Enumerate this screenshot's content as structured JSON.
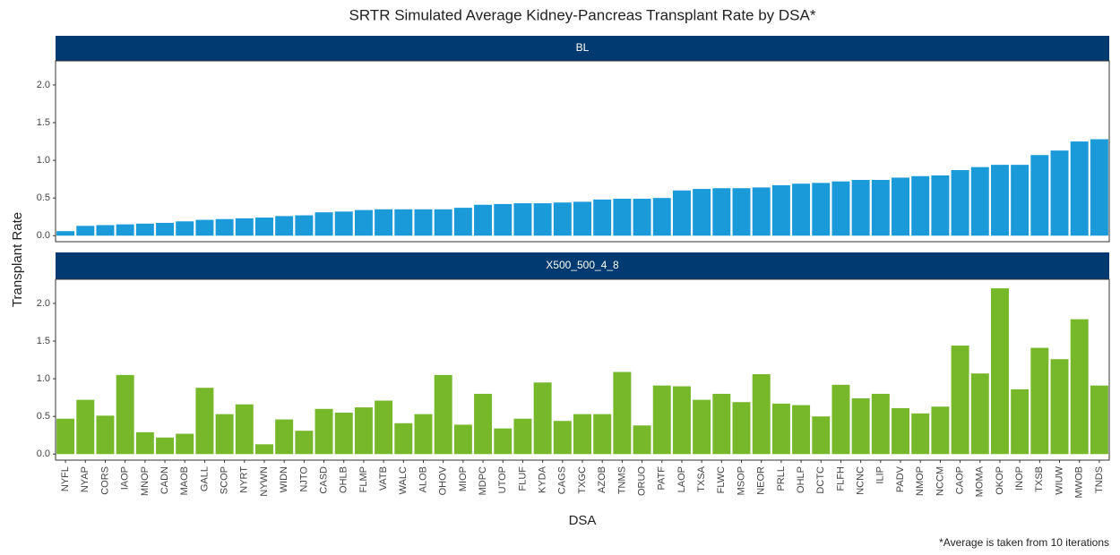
{
  "title": "SRTR Simulated Average Kidney-Pancreas Transplant Rate  by DSA*",
  "y_label": "Transplant Rate",
  "x_label": "DSA",
  "note": "*Average is taken from 10 iterations",
  "chart_data": [
    {
      "type": "bar",
      "strip": "BL",
      "color": "#1a9ad9",
      "categories": [
        "NYFL",
        "NYAP",
        "CORS",
        "IAOP",
        "MNOP",
        "CADN",
        "MAOB",
        "GALL",
        "SCOP",
        "NYRT",
        "NYWN",
        "WIDN",
        "NJTO",
        "CASD",
        "OHLB",
        "FLMP",
        "VATB",
        "WALC",
        "ALOB",
        "OHOV",
        "MIOP",
        "MDPC",
        "UTOP",
        "FLUF",
        "KYDA",
        "CAGS",
        "TXGC",
        "AZOB",
        "TNMS",
        "ORUO",
        "PATF",
        "LAOP",
        "TXSA",
        "FLWC",
        "MSOP",
        "NEOR",
        "PRLL",
        "OHLP",
        "DCTC",
        "FLFH",
        "NCNC",
        "ILIP",
        "PADV",
        "NMOP",
        "NCCM",
        "CAOP",
        "MOMA",
        "OKOP",
        "INOP",
        "TXSB",
        "WIUW",
        "MWOB",
        "TNDS"
      ],
      "values": [
        0.06,
        0.13,
        0.14,
        0.15,
        0.16,
        0.17,
        0.19,
        0.21,
        0.22,
        0.23,
        0.24,
        0.26,
        0.27,
        0.31,
        0.32,
        0.34,
        0.35,
        0.35,
        0.35,
        0.35,
        0.37,
        0.41,
        0.42,
        0.43,
        0.43,
        0.44,
        0.45,
        0.48,
        0.49,
        0.49,
        0.5,
        0.6,
        0.62,
        0.63,
        0.63,
        0.64,
        0.67,
        0.69,
        0.7,
        0.72,
        0.74,
        0.74,
        0.77,
        0.79,
        0.8,
        0.87,
        0.91,
        0.94,
        0.94,
        1.07,
        1.13,
        1.25,
        1.28
      ],
      "ylim": [
        -0.08,
        2.32
      ],
      "yticks": [
        {
          "value": 0,
          "label": "0.0"
        },
        0.5,
        {
          "value": 1,
          "label": "1.0"
        },
        1.5,
        {
          "value": 2,
          "label": "2.0"
        }
      ]
    },
    {
      "type": "bar",
      "strip": "X500_500_4_8",
      "color": "#76b82a",
      "categories": [
        "NYFL",
        "NYAP",
        "CORS",
        "IAOP",
        "MNOP",
        "CADN",
        "MAOB",
        "GALL",
        "SCOP",
        "NYRT",
        "NYWN",
        "WIDN",
        "NJTO",
        "CASD",
        "OHLB",
        "FLMP",
        "VATB",
        "WALC",
        "ALOB",
        "OHOV",
        "MIOP",
        "MDPC",
        "UTOP",
        "FLUF",
        "KYDA",
        "CAGS",
        "TXGC",
        "AZOB",
        "TNMS",
        "ORUO",
        "PATF",
        "LAOP",
        "TXSA",
        "FLWC",
        "MSOP",
        "NEOR",
        "PRLL",
        "OHLP",
        "DCTC",
        "FLFH",
        "NCNC",
        "ILIP",
        "PADV",
        "NMOP",
        "NCCM",
        "CAOP",
        "MOMA",
        "OKOP",
        "INOP",
        "TXSB",
        "WIUW",
        "MWOB",
        "TNDS"
      ],
      "values": [
        0.47,
        0.72,
        0.51,
        1.05,
        0.29,
        0.22,
        0.27,
        0.88,
        0.53,
        0.66,
        0.13,
        0.46,
        0.31,
        0.6,
        0.55,
        0.62,
        0.71,
        0.41,
        0.53,
        1.05,
        0.39,
        0.8,
        0.34,
        0.47,
        0.95,
        0.44,
        0.53,
        0.53,
        1.09,
        0.38,
        0.91,
        0.9,
        0.72,
        0.8,
        0.69,
        1.06,
        0.67,
        0.65,
        0.5,
        0.92,
        0.74,
        0.8,
        0.61,
        0.54,
        0.63,
        1.44,
        1.07,
        2.2,
        0.86,
        1.41,
        1.26,
        1.79,
        0.91
      ],
      "ylim": [
        -0.08,
        2.32
      ],
      "yticks": [
        {
          "value": 0,
          "label": "0.0"
        },
        0.5,
        {
          "value": 1,
          "label": "1.0"
        },
        1.5,
        {
          "value": 2,
          "label": "2.0"
        }
      ],
      "show_x_labels": true
    }
  ]
}
